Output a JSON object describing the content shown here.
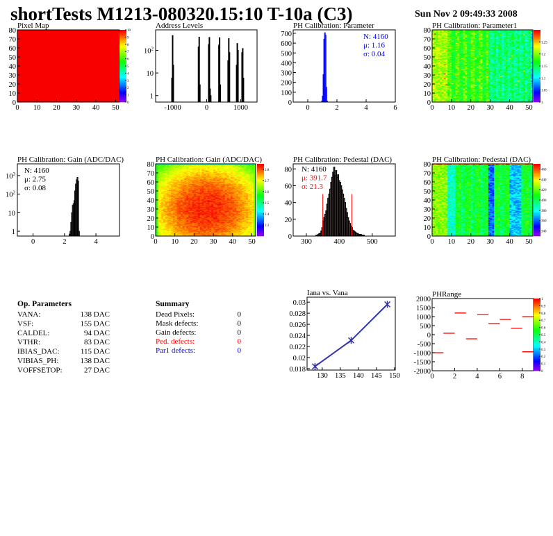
{
  "header": {
    "title": "shortTests M1213-080320.15:10 T-10a (C3)",
    "date": "Sun Nov  2 09:49:33 2008"
  },
  "colors": {
    "red": "#ff0000",
    "blue": "#0000ff",
    "graph": "#3333aa",
    "black": "#000000"
  },
  "chart_data": [
    {
      "id": "pixel-map",
      "type": "heatmap",
      "title": "Pixel Map",
      "xlim": [
        0,
        52
      ],
      "ylim": [
        0,
        80
      ],
      "zlim": [
        0,
        10
      ],
      "xticks": [
        0,
        10,
        20,
        30,
        40,
        50
      ],
      "yticks": [
        0,
        10,
        20,
        30,
        40,
        50,
        60,
        70,
        80
      ],
      "zticks": [
        0,
        1,
        2,
        3,
        4,
        5,
        6,
        7,
        8,
        9,
        10
      ],
      "uniform_value": 10
    },
    {
      "id": "address-levels",
      "type": "bar",
      "title": "Address Levels",
      "xlim": [
        -1500,
        1480
      ],
      "ylim": [
        0.52,
        800
      ],
      "ylog": true,
      "xticks": [
        -1000,
        0,
        1000
      ],
      "yticks": [
        1,
        10,
        100
      ],
      "yticklabels": [
        "1",
        "10",
        "10^2"
      ],
      "bin_width": 20,
      "x": [
        -1030,
        -1010,
        -990,
        -250,
        -230,
        -210,
        50,
        70,
        90,
        110,
        350,
        370,
        390,
        620,
        640,
        660,
        870,
        890,
        910,
        1030,
        1050,
        1070
      ],
      "values": [
        6,
        450,
        22,
        140,
        380,
        3,
        180,
        370,
        2,
        1,
        170,
        360,
        3,
        35,
        330,
        80,
        22,
        200,
        100,
        80,
        120,
        6
      ]
    },
    {
      "id": "ph-parameter",
      "type": "bar",
      "title": "PH Calibration: Parameter",
      "xlim": [
        -1,
        6
      ],
      "ylim": [
        0,
        735
      ],
      "xticks": [
        0,
        2,
        4,
        6
      ],
      "yticks": [
        0,
        100,
        200,
        300,
        400,
        500,
        600,
        700
      ],
      "bin_width": 0.05,
      "x": [
        0.95,
        1.0,
        1.05,
        1.1,
        1.15,
        1.2,
        1.25,
        1.3
      ],
      "values": [
        10,
        60,
        280,
        640,
        705,
        680,
        150,
        10
      ],
      "stats": {
        "n": "N: 4160",
        "mean": "μ: 1.16",
        "sigma": "σ: 0.04"
      },
      "line_color": "#0000ff"
    },
    {
      "id": "ph-parameter1-map",
      "type": "heatmap",
      "title": "PH Calibration: Parameter1",
      "xlim": [
        0,
        52
      ],
      "ylim": [
        0,
        80
      ],
      "zlim": [
        1.0,
        1.3
      ],
      "xticks": [
        0,
        10,
        20,
        30,
        40,
        50
      ],
      "yticks": [
        0,
        10,
        20,
        30,
        40,
        50,
        60,
        70,
        80
      ],
      "zticks": [
        1,
        1.05,
        1.1,
        1.15,
        1.2,
        1.25
      ]
    },
    {
      "id": "gain-hist",
      "type": "bar",
      "title": "PH Calibration: Gain (ADC/DAC)",
      "xlim": [
        -1,
        5.5
      ],
      "ylim": [
        0.55,
        4300
      ],
      "ylog": true,
      "xticks": [
        0,
        2,
        4
      ],
      "yticks": [
        1,
        10,
        100,
        1000
      ],
      "yticklabels": [
        "1",
        "10",
        "10^2",
        "10^3"
      ],
      "bin_width": 0.05,
      "x": [
        2.3,
        2.35,
        2.4,
        2.45,
        2.5,
        2.55,
        2.6,
        2.65,
        2.7,
        2.75,
        2.8,
        2.85,
        2.9
      ],
      "values": [
        0.7,
        1,
        3,
        10,
        25,
        30,
        45,
        150,
        350,
        600,
        800,
        500,
        1
      ],
      "stats": {
        "n": "N: 4160",
        "mean": "μ: 2.75",
        "sigma": "σ: 0.08"
      },
      "line_color": "#000000"
    },
    {
      "id": "gain-map",
      "type": "heatmap",
      "title": "PH Calibration: Gain (ADC/DAC)",
      "xlim": [
        0,
        52
      ],
      "ylim": [
        0,
        80
      ],
      "zlim": [
        2.2,
        2.85
      ],
      "xticks": [
        0,
        10,
        20,
        30,
        40,
        50
      ],
      "yticks": [
        0,
        10,
        20,
        30,
        40,
        50,
        60,
        70,
        80
      ],
      "zticks": [
        2.3,
        2.4,
        2.5,
        2.6,
        2.7,
        2.8
      ]
    },
    {
      "id": "pedestal-hist",
      "type": "bar",
      "title": "PH Calibration: Pedestal (DAC)",
      "xlim": [
        260,
        570
      ],
      "ylim": [
        0,
        86
      ],
      "xticks": [
        300,
        400,
        500
      ],
      "yticks": [
        0,
        20,
        40,
        60,
        80
      ],
      "bin_width": 3,
      "x": [
        329,
        332,
        335,
        338,
        341,
        344,
        347,
        350,
        353,
        356,
        359,
        362,
        365,
        368,
        371,
        374,
        377,
        380,
        383,
        386,
        389,
        392,
        395,
        398,
        401,
        404,
        407,
        410,
        413,
        416,
        419,
        422,
        425,
        428,
        431,
        434,
        437,
        440,
        443,
        446,
        449,
        452,
        455,
        458,
        461,
        464,
        467,
        470,
        473
      ],
      "values": [
        1,
        1,
        2,
        3,
        3,
        6,
        10,
        18,
        22,
        26,
        30,
        38,
        45,
        50,
        56,
        64,
        70,
        76,
        82,
        72,
        78,
        70,
        73,
        66,
        64,
        60,
        55,
        50,
        45,
        40,
        33,
        28,
        22,
        18,
        15,
        12,
        10,
        7,
        6,
        5,
        4,
        3,
        3,
        2,
        1,
        2,
        1,
        1,
        1
      ],
      "cuts": [
        350,
        438
      ],
      "stats": {
        "n": "N: 4160",
        "mean": "μ: 391.7",
        "sigma": "σ: 21.3"
      },
      "line_color": "#000000",
      "fill_color": "#f5c6c6"
    },
    {
      "id": "pedestal-map",
      "type": "heatmap",
      "title": "PH Calibration: Pedestal (DAC)",
      "xlim": [
        0,
        52
      ],
      "ylim": [
        0,
        80
      ],
      "zlim": [
        330,
        470
      ],
      "xticks": [
        0,
        10,
        20,
        30,
        40,
        50
      ],
      "yticks": [
        0,
        10,
        20,
        30,
        40,
        50,
        60,
        70,
        80
      ],
      "zticks": [
        340,
        360,
        380,
        400,
        420,
        440,
        460
      ]
    },
    {
      "id": "iana-vs-vana",
      "type": "line",
      "title": "Iana vs. Vana",
      "xlim": [
        125.8,
        150.2
      ],
      "ylim": [
        0.01774,
        0.0309
      ],
      "xticks": [
        130,
        135,
        140,
        145,
        150
      ],
      "yticks": [
        0.018,
        0.02,
        0.022,
        0.024,
        0.026,
        0.028,
        0.03
      ],
      "x": [
        128,
        138,
        148
      ],
      "values": [
        0.0184,
        0.0231,
        0.0296
      ]
    },
    {
      "id": "ph-range",
      "type": "heatmap",
      "title": "PHRange",
      "xlim": [
        0,
        9
      ],
      "ylim": [
        -2000,
        2000
      ],
      "xticks": [
        0,
        2,
        4,
        6,
        8
      ],
      "yticks": [
        -2000,
        -1500,
        -1000,
        -500,
        0,
        500,
        1000,
        1500,
        2000
      ],
      "zticks": [
        0,
        0.1,
        0.2,
        0.3,
        0.4,
        0.5,
        0.6,
        0.7,
        0.8,
        0.9,
        1
      ],
      "segments": [
        {
          "x": [
            0,
            1
          ],
          "y": -1000
        },
        {
          "x": [
            1,
            2
          ],
          "y": 80
        },
        {
          "x": [
            2,
            3
          ],
          "y": 1200
        },
        {
          "x": [
            3,
            4
          ],
          "y": -230
        },
        {
          "x": [
            4,
            5
          ],
          "y": 1100
        },
        {
          "x": [
            5,
            6
          ],
          "y": 620
        },
        {
          "x": [
            6,
            7
          ],
          "y": 840
        },
        {
          "x": [
            7,
            8
          ],
          "y": 350
        },
        {
          "x": [
            8,
            9
          ],
          "y": 1000
        },
        {
          "x": [
            8,
            9
          ],
          "y": -950
        }
      ]
    }
  ],
  "op_parameters": {
    "title": "Op. Parameters",
    "rows": [
      {
        "label": "VANA:",
        "value": "138 DAC"
      },
      {
        "label": "VSF:",
        "value": "155 DAC"
      },
      {
        "label": "CALDEL:",
        "value": "94 DAC"
      },
      {
        "label": "VTHR:",
        "value": "83 DAC"
      },
      {
        "label": "IBIAS_DAC:",
        "value": "115 DAC"
      },
      {
        "label": "VIBIAS_PH:",
        "value": "138 DAC"
      },
      {
        "label": "VOFFSETOP:",
        "value": "27 DAC"
      }
    ]
  },
  "summary": {
    "title": "Summary",
    "rows": [
      {
        "label": "Dead Pixels:",
        "value": "0",
        "color": "#000000"
      },
      {
        "label": "Mask defects:",
        "value": "0",
        "color": "#000000"
      },
      {
        "label": "Gain defects:",
        "value": "0",
        "color": "#000000"
      },
      {
        "label": "Ped. defects:",
        "value": "0",
        "color": "#ff0000"
      },
      {
        "label": "Par1 defects:",
        "value": "0",
        "color": "#0000ff"
      }
    ]
  }
}
